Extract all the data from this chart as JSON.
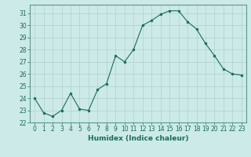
{
  "x": [
    0,
    1,
    2,
    3,
    4,
    5,
    6,
    7,
    8,
    9,
    10,
    11,
    12,
    13,
    14,
    15,
    16,
    17,
    18,
    19,
    20,
    21,
    22,
    23
  ],
  "y": [
    24.0,
    22.8,
    22.5,
    23.0,
    24.4,
    23.1,
    23.0,
    24.7,
    25.2,
    27.5,
    27.0,
    28.0,
    30.0,
    30.4,
    30.9,
    31.2,
    31.2,
    30.3,
    29.7,
    28.5,
    27.5,
    26.4,
    26.0,
    25.9
  ],
  "line_color": "#1a6b5a",
  "marker": "o",
  "marker_size": 2,
  "bg_color": "#cceae8",
  "grid_color": "#b0d0ce",
  "xlabel": "Humidex (Indice chaleur)",
  "xlim": [
    -0.5,
    23.5
  ],
  "ylim": [
    22,
    31.7
  ],
  "yticks": [
    22,
    23,
    24,
    25,
    26,
    27,
    28,
    29,
    30,
    31
  ],
  "xticks": [
    0,
    1,
    2,
    3,
    4,
    5,
    6,
    7,
    8,
    9,
    10,
    11,
    12,
    13,
    14,
    15,
    16,
    17,
    18,
    19,
    20,
    21,
    22,
    23
  ],
  "tick_label_fontsize": 5.5,
  "xlabel_fontsize": 6.5,
  "tick_color": "#1a6b5a",
  "label_color": "#1a6b5a",
  "spine_color": "#5a9a8a"
}
